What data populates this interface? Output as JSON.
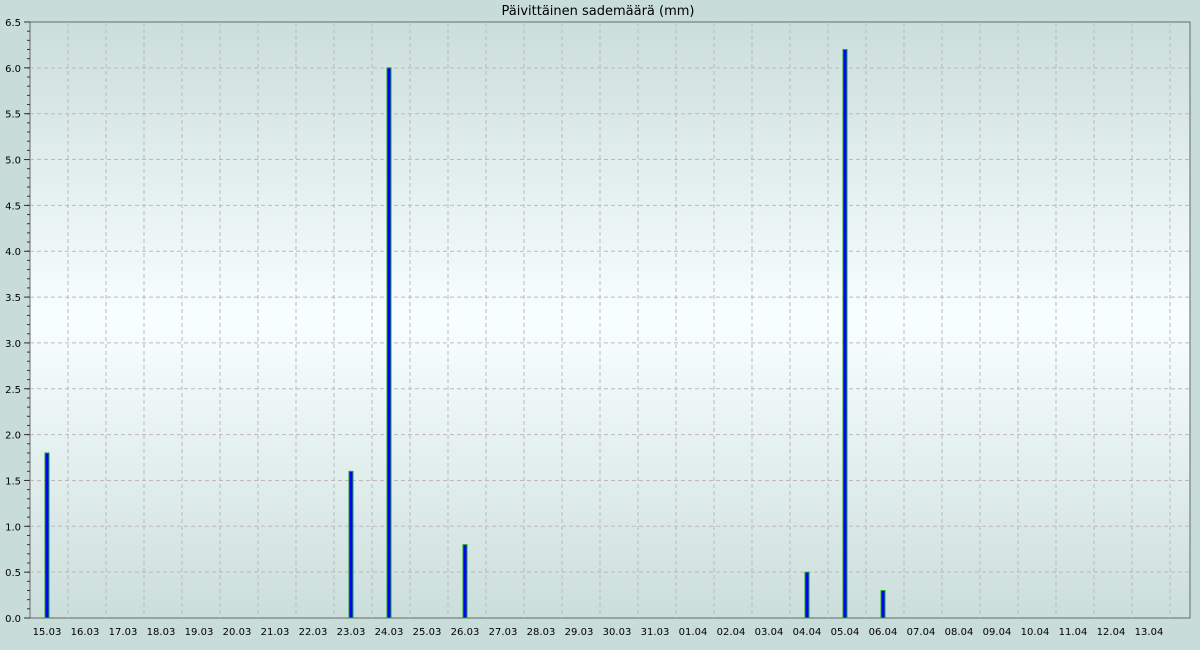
{
  "chart_data": {
    "type": "bar",
    "title": "Päivittäinen sademäärä (mm)",
    "xlabel": "",
    "ylabel": "",
    "ylim": [
      0,
      6.5
    ],
    "yticks": [
      "0.0",
      "0.5",
      "1.0",
      "1.5",
      "2.0",
      "2.5",
      "3.0",
      "3.5",
      "4.0",
      "4.5",
      "5.0",
      "5.5",
      "6.0",
      "6.5"
    ],
    "grid": true,
    "categories": [
      "15.03",
      "16.03",
      "17.03",
      "18.03",
      "19.03",
      "20.03",
      "21.03",
      "22.03",
      "23.03",
      "24.03",
      "25.03",
      "26.03",
      "27.03",
      "28.03",
      "29.03",
      "30.03",
      "31.03",
      "01.04",
      "02.04",
      "03.04",
      "04.04",
      "05.04",
      "06.04",
      "07.04",
      "08.04",
      "09.04",
      "10.04",
      "11.04",
      "12.04",
      "13.04"
    ],
    "values": [
      1.8,
      0,
      0,
      0,
      0,
      0,
      0,
      0,
      1.6,
      6.0,
      0,
      0.8,
      0,
      0,
      0,
      0,
      0,
      0,
      0,
      0,
      0.5,
      6.2,
      0.3,
      0,
      0,
      0,
      0,
      0,
      0,
      0
    ],
    "colors": {
      "bar_fill": "#0000ff",
      "bar_edge": "#22aa22",
      "background": "#c8dcd9",
      "plot_center": "#f8ffff",
      "grid": "#c0b8b8"
    }
  }
}
